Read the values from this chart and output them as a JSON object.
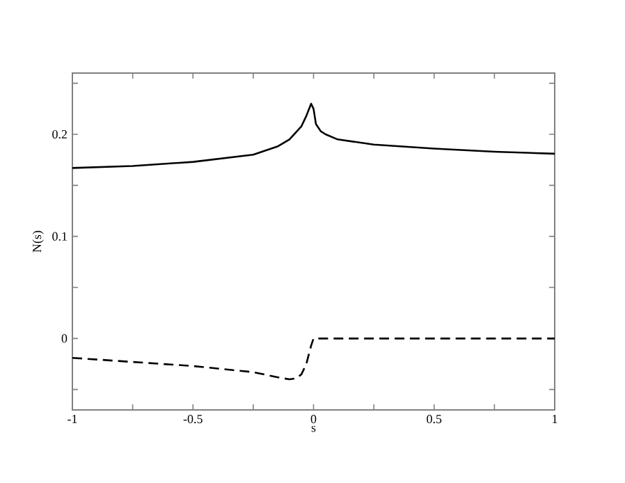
{
  "chart_data": {
    "type": "line",
    "xlabel": "s",
    "ylabel": "N(s)",
    "xlim": [
      -1,
      1
    ],
    "ylim": [
      -0.07,
      0.26
    ],
    "xticks": [
      -1,
      {
        "value": -0.75,
        "label": null
      },
      -0.5,
      {
        "value": -0.25,
        "label": null
      },
      0,
      {
        "value": 0.25,
        "label": null
      },
      0.5,
      {
        "value": 0.75,
        "label": null
      },
      1
    ],
    "yticks": [
      {
        "value": -0.05,
        "label": null
      },
      0,
      {
        "value": 0.05,
        "label": null
      },
      0.1,
      {
        "value": 0.15,
        "label": null
      },
      0.2,
      {
        "value": 0.25,
        "label": null
      }
    ],
    "grid": false,
    "marker": "none",
    "series": [
      {
        "color": "#000000",
        "line_style": "solid",
        "x": [
          -1,
          -0.75,
          -0.5,
          -0.25,
          -0.15,
          -0.1,
          -0.05,
          -0.03,
          -0.01,
          0,
          0.01,
          0.03,
          0.05,
          0.1,
          0.25,
          0.5,
          0.75,
          1
        ],
        "values": [
          0.167,
          0.169,
          0.173,
          0.18,
          0.188,
          0.195,
          0.208,
          0.218,
          0.23,
          0.225,
          0.21,
          0.203,
          0.2,
          0.195,
          0.19,
          0.186,
          0.183,
          0.181
        ]
      },
      {
        "color": "#000000",
        "line_style": "dashed",
        "x": [
          -1,
          -0.75,
          -0.5,
          -0.25,
          -0.15,
          -0.1,
          -0.07,
          -0.05,
          -0.03,
          -0.01,
          0,
          0.25,
          0.5,
          0.75,
          1
        ],
        "values": [
          -0.019,
          -0.023,
          -0.027,
          -0.033,
          -0.038,
          -0.04,
          -0.039,
          -0.035,
          -0.025,
          -0.007,
          0,
          0,
          0,
          0,
          0
        ]
      }
    ]
  }
}
